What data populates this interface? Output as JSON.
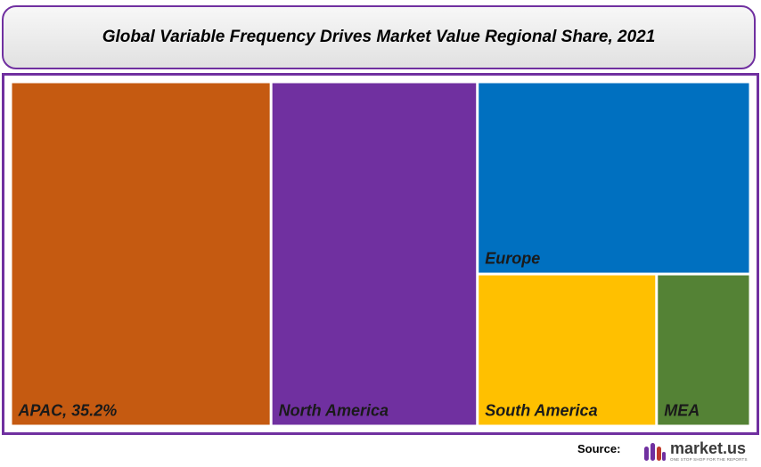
{
  "colors": {
    "frame": "#7030a0",
    "apac": "#c55a11",
    "north_america": "#7030a0",
    "europe": "#0070c0",
    "south_america": "#ffc000",
    "mea": "#548235"
  },
  "chart_data": {
    "type": "treemap",
    "title": "Global Variable Frequency Drives Market Value Regional Share, 2021",
    "unit": "%",
    "items": [
      {
        "name": "APAC",
        "label": "APAC, 35.2%",
        "value": 35.2,
        "color": "#c55a11"
      },
      {
        "name": "North America",
        "label": "North America",
        "value": 27.9,
        "color": "#7030a0"
      },
      {
        "name": "Europe",
        "label": "Europe",
        "value": 20.6,
        "color": "#0070c0"
      },
      {
        "name": "South America",
        "label": "South America",
        "value": 10.7,
        "color": "#ffc000"
      },
      {
        "name": "MEA",
        "label": "MEA",
        "value": 5.6,
        "color": "#548235"
      }
    ]
  },
  "footer": {
    "source_label": "Source:",
    "brand_name": "market.us",
    "brand_tagline": "ONE STOP SHOP FOR THE REPORTS"
  }
}
